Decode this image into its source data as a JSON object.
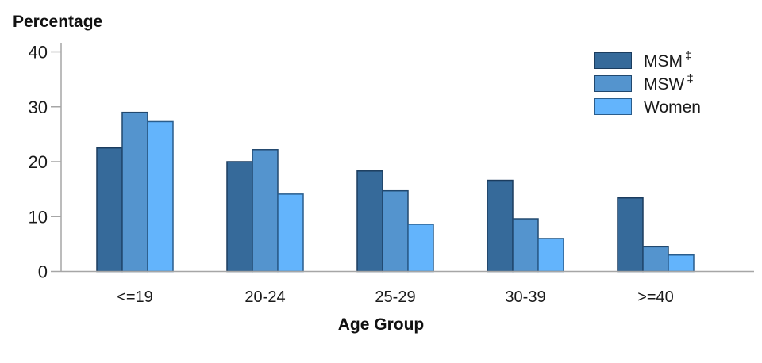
{
  "chart": {
    "y_axis_title": "Percentage",
    "x_axis_title": "Age Group"
  },
  "chart_data": {
    "type": "bar",
    "title": "",
    "ylabel": "Percentage",
    "xlabel": "Age Group",
    "ylim": [
      0,
      40
    ],
    "yticks": [
      0,
      10,
      20,
      30,
      40
    ],
    "grid": false,
    "legend_position": "top-right",
    "axis_color": "#a6a6a6",
    "text_color": "#1a1a1a",
    "categories": [
      "<=19",
      "20-24",
      "25-29",
      "30-39",
      ">=40"
    ],
    "series": [
      {
        "name": "MSM",
        "mark": "‡",
        "color": "#366a9a",
        "border": "#1b3c5e",
        "values": [
          22.5,
          20.0,
          18.3,
          16.6,
          13.4
        ]
      },
      {
        "name": "MSW",
        "mark": "‡",
        "color": "#5494ce",
        "border": "#21486e",
        "values": [
          29.0,
          22.2,
          14.7,
          9.6,
          4.5
        ]
      },
      {
        "name": "Women",
        "mark": "",
        "color": "#63b4fc",
        "border": "#2a5d8c",
        "values": [
          27.3,
          14.1,
          8.6,
          6.0,
          3.0
        ]
      }
    ]
  }
}
